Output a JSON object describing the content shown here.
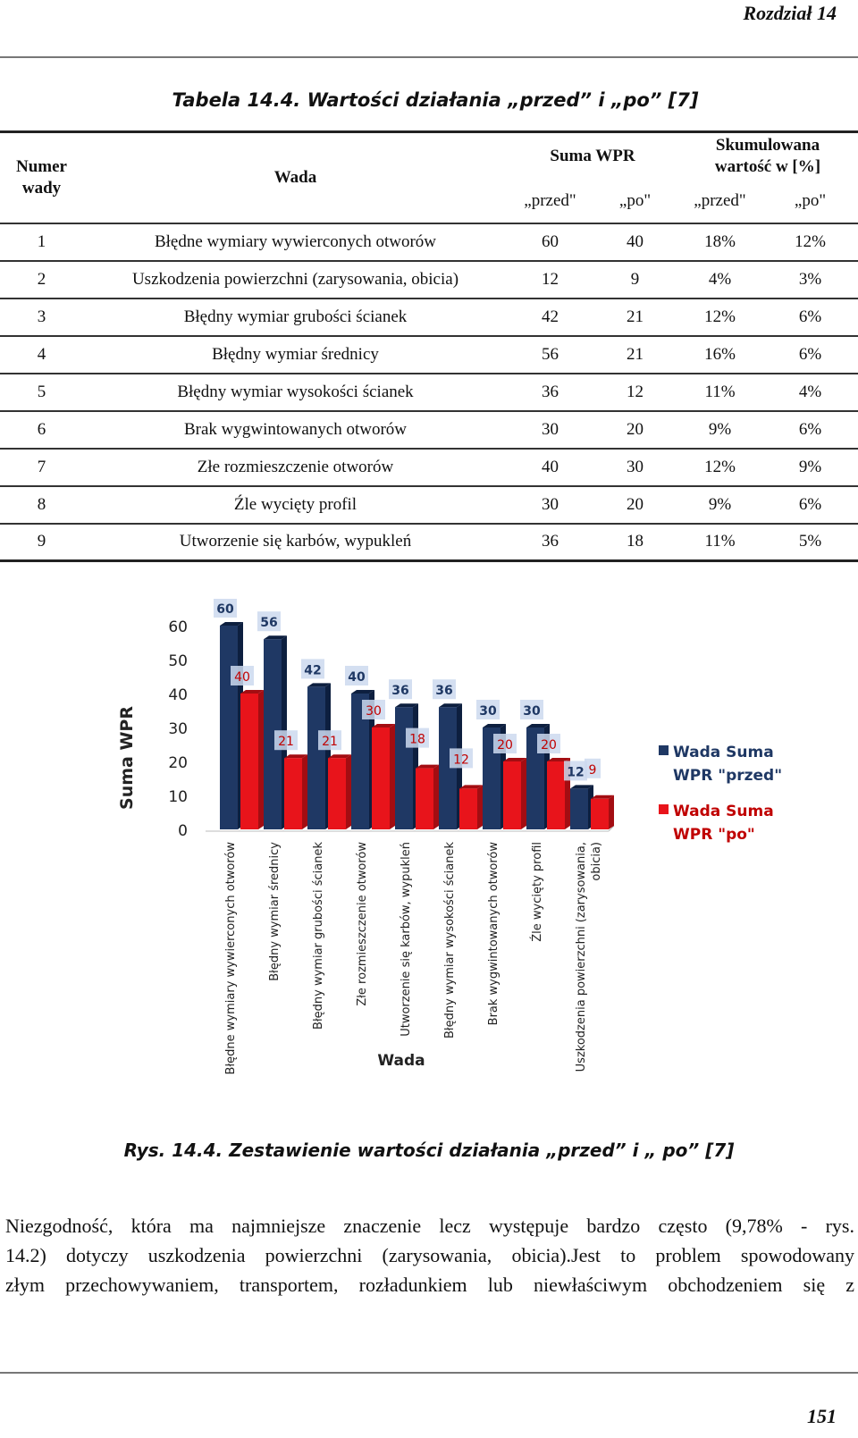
{
  "header": {
    "chapter": "Rozdział 14"
  },
  "table": {
    "caption": "Tabela 14.4. Wartości działania „przed” i „po” [7]",
    "headers": {
      "number": "Numer wady",
      "defect": "Wada",
      "sum_wpr": "Suma WPR",
      "cumulative": "Skumulowana wartość w [%]",
      "before": "„przed\"",
      "after": "„po\""
    },
    "rows": [
      {
        "no": "1",
        "defect": "Błędne wymiary wywierconych otworów",
        "before": "60",
        "after": "40",
        "cum_before": "18%",
        "cum_after": "12%"
      },
      {
        "no": "2",
        "defect": "Uszkodzenia powierzchni (zarysowania, obicia)",
        "before": "12",
        "after": "9",
        "cum_before": "4%",
        "cum_after": "3%"
      },
      {
        "no": "3",
        "defect": "Błędny wymiar grubości ścianek",
        "before": "42",
        "after": "21",
        "cum_before": "12%",
        "cum_after": "6%"
      },
      {
        "no": "4",
        "defect": "Błędny wymiar średnicy",
        "before": "56",
        "after": "21",
        "cum_before": "16%",
        "cum_after": "6%"
      },
      {
        "no": "5",
        "defect": "Błędny wymiar wysokości ścianek",
        "before": "36",
        "after": "12",
        "cum_before": "11%",
        "cum_after": "4%"
      },
      {
        "no": "6",
        "defect": "Brak wygwintowanych otworów",
        "before": "30",
        "after": "20",
        "cum_before": "9%",
        "cum_after": "6%"
      },
      {
        "no": "7",
        "defect": "Złe rozmieszczenie otworów",
        "before": "40",
        "after": "30",
        "cum_before": "12%",
        "cum_after": "9%"
      },
      {
        "no": "8",
        "defect": "Źle wycięty profil",
        "before": "30",
        "after": "20",
        "cum_before": "9%",
        "cum_after": "6%"
      },
      {
        "no": "9",
        "defect": "Utworzenie się karbów, wypukleń",
        "before": "36",
        "after": "18",
        "cum_before": "11%",
        "cum_after": "5%"
      }
    ]
  },
  "chart_data": {
    "type": "bar",
    "xlabel": "Wada",
    "ylabel": "Suma WPR",
    "ylim": [
      0,
      60
    ],
    "yticks": [
      0,
      10,
      20,
      30,
      40,
      50,
      60
    ],
    "grid": false,
    "legend_position": "right",
    "categories": [
      [
        "Błędne wymiary wywierconych otworów"
      ],
      [
        "Błędny wymiar średnicy"
      ],
      [
        "Błędny wymiar grubości ścianek"
      ],
      [
        "Złe rozmieszczenie otworów"
      ],
      [
        "Utworzenie się karbów, wypukleń"
      ],
      [
        "Błędny wymiar wysokości ścianek"
      ],
      [
        "Brak wygwintowanych otworów"
      ],
      [
        "Źle wycięty profil"
      ],
      [
        "Uszkodzenia powierzchni (zarysowania,",
        "obicia)"
      ]
    ],
    "series": [
      {
        "name": "Wada Suma WPR \"przed\"",
        "legend_lines": [
          "Wada Suma",
          "WPR \"przed\""
        ],
        "color": "#1f3864",
        "label_color": "#1f3864",
        "values": [
          60,
          56,
          42,
          40,
          36,
          36,
          30,
          30,
          12
        ]
      },
      {
        "name": "Wada Suma WPR \"po\"",
        "legend_lines": [
          "Wada Suma",
          "WPR \"po\""
        ],
        "color": "#e8141b",
        "label_color": "#c00000",
        "values": [
          40,
          21,
          21,
          30,
          18,
          12,
          20,
          20,
          9
        ]
      }
    ]
  },
  "figure": {
    "caption": "Rys. 14.4. Zestawienie wartości działania „przed” i „ po” [7]"
  },
  "paragraph": {
    "lines": [
      "Niezgodność, która ma najmniejsze znaczenie lecz występuje bardzo często (9,78% - rys.",
      "14.2) dotyczy uszkodzenia powierzchni (zarysowania, obicia).Jest to problem spowodowany",
      "złym przechowywaniem, transportem, rozładunkiem lub niewłaściwym obchodzeniem się z"
    ]
  },
  "footer": {
    "page_number": "151"
  }
}
